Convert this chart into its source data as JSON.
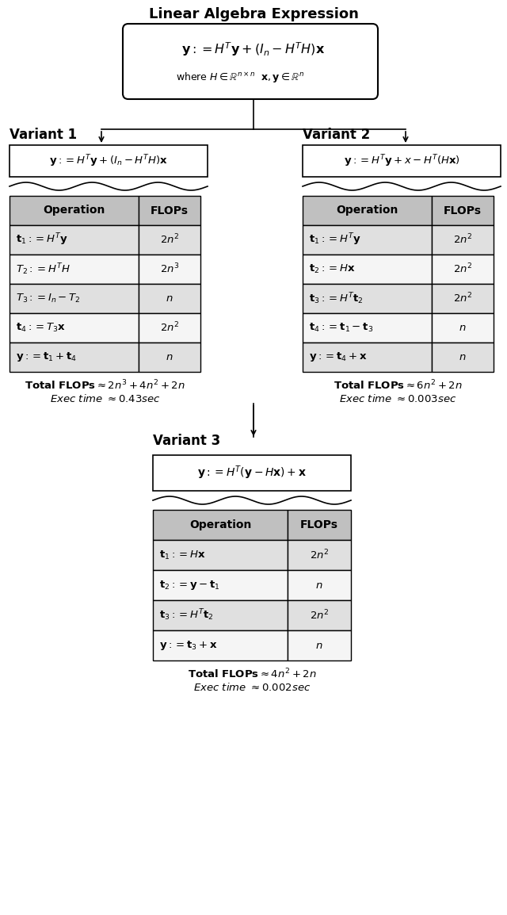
{
  "title": "Linear Algebra Expression",
  "main_expr_line1": "$\\mathbf{y} := H^T\\mathbf{y} + (I_n - H^TH)\\mathbf{x}$",
  "main_expr_line2": "where $H \\in \\mathbb{R}^{n \\times n}$  $\\mathbf{x}, \\mathbf{y} \\in \\mathbb{R}^n$",
  "variant1_label": "Variant 1",
  "variant1_expr": "$\\mathbf{y} := H^T\\mathbf{y} + (I_n - H^TH)\\mathbf{x}$",
  "variant1_ops": [
    [
      "$\\mathbf{t}_1 := H^T\\mathbf{y}$",
      "$2n^2$"
    ],
    [
      "$T_2 := H^TH$",
      "$2n^3$"
    ],
    [
      "$T_3 := I_n - T_2$",
      "$n$"
    ],
    [
      "$\\mathbf{t}_4 := T_3\\mathbf{x}$",
      "$2n^2$"
    ],
    [
      "$\\mathbf{y} := \\mathbf{t}_1 + \\mathbf{t}_4$",
      "$n$"
    ]
  ],
  "variant1_total": "$\\mathbf{Total\\ FLOPs} \\approx 2n^3 + 4n^2 + 2n$",
  "variant1_exec": "Exec time $\\approx 0.43sec$",
  "variant2_label": "Variant 2",
  "variant2_expr": "$\\mathbf{y} := H^T\\mathbf{y} + x - H^T(H\\mathbf{x})$",
  "variant2_ops": [
    [
      "$\\mathbf{t}_1 := H^T\\mathbf{y}$",
      "$2n^2$"
    ],
    [
      "$\\mathbf{t}_2 := H\\mathbf{x}$",
      "$2n^2$"
    ],
    [
      "$\\mathbf{t}_3 := H^T\\mathbf{t}_2$",
      "$2n^2$"
    ],
    [
      "$\\mathbf{t}_4 := \\mathbf{t}_1 - \\mathbf{t}_3$",
      "$n$"
    ],
    [
      "$\\mathbf{y} := \\mathbf{t}_4 + \\mathbf{x}$",
      "$n$"
    ]
  ],
  "variant2_total": "$\\mathbf{Total\\ FLOPs} \\approx 6n^2 + 2n$",
  "variant2_exec": "Exec time $\\approx 0.003sec$",
  "variant3_label": "Variant 3",
  "variant3_expr": "$\\mathbf{y} := H^T(\\mathbf{y} - H\\mathbf{x}) + \\mathbf{x}$",
  "variant3_ops": [
    [
      "$\\mathbf{t}_1 := H\\mathbf{x}$",
      "$2n^2$"
    ],
    [
      "$\\mathbf{t}_2 := \\mathbf{y} - \\mathbf{t}_1$",
      "$n$"
    ],
    [
      "$\\mathbf{t}_3 := H^T\\mathbf{t}_2$",
      "$2n^2$"
    ],
    [
      "$\\mathbf{y} := \\mathbf{t}_3 + \\mathbf{x}$",
      "$n$"
    ]
  ],
  "variant3_total": "$\\mathbf{Total\\ FLOPs} \\approx 4n^2 + 2n$",
  "variant3_exec": "Exec time $\\approx 0.002sec$",
  "col_header_op": "Operation",
  "col_header_flops": "FLOPs",
  "bg_color": "#ffffff"
}
